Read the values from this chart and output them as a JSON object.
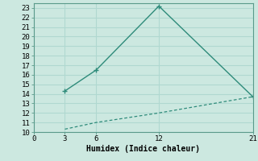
{
  "line1_x": [
    3,
    6,
    12,
    21
  ],
  "line1_y": [
    14.3,
    16.5,
    23.2,
    13.7
  ],
  "line2_x": [
    3,
    6,
    12,
    21
  ],
  "line2_y": [
    10.3,
    11.0,
    12.0,
    13.7
  ],
  "line_color": "#2e8b7a",
  "bg_color": "#cce8e0",
  "grid_color": "#b0d8d0",
  "xlabel": "Humidex (Indice chaleur)",
  "xlim": [
    0,
    21
  ],
  "ylim": [
    10,
    23.5
  ],
  "xticks": [
    0,
    3,
    6,
    12,
    21
  ],
  "yticks": [
    10,
    11,
    12,
    13,
    14,
    15,
    16,
    17,
    18,
    19,
    20,
    21,
    22,
    23
  ],
  "xlabel_fontsize": 7.0,
  "tick_fontsize": 6.5
}
